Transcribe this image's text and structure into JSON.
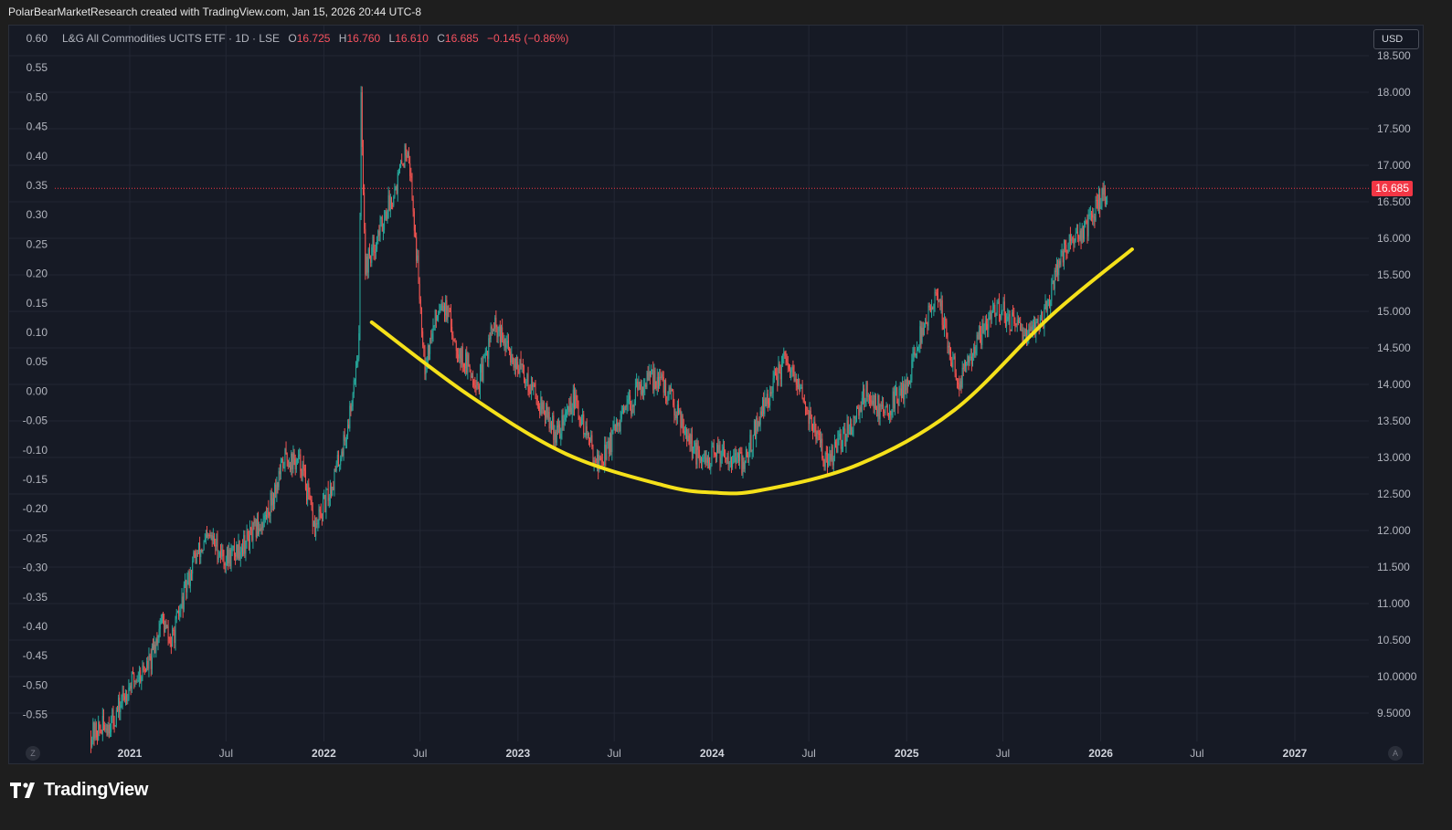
{
  "header": {
    "credit": "PolarBearMarketResearch created with TradingView.com, Jan 15, 2026 20:44 UTC-8"
  },
  "legend": {
    "symbol": "L&G All Commodities UCITS ETF · 1D · LSE",
    "open_label": "O",
    "open": "16.725",
    "high_label": "H",
    "high": "16.760",
    "low_label": "L",
    "low": "16.610",
    "close_label": "C",
    "close": "16.685",
    "change": "−0.145 (−0.86%)"
  },
  "currency_button": "USD",
  "last_price_badge": "16.685",
  "left_axis_labels": [
    "0.60",
    "0.55",
    "0.50",
    "0.45",
    "0.40",
    "0.35",
    "0.30",
    "0.25",
    "0.20",
    "0.15",
    "0.10",
    "0.05",
    "0.00",
    "-0.05",
    "-0.10",
    "-0.15",
    "-0.20",
    "-0.25",
    "-0.30",
    "-0.35",
    "-0.40",
    "-0.45",
    "-0.50",
    "-0.55"
  ],
  "left_axis_values": [
    0.6,
    0.55,
    0.5,
    0.45,
    0.4,
    0.35,
    0.3,
    0.25,
    0.2,
    0.15,
    0.1,
    0.05,
    0.0,
    -0.05,
    -0.1,
    -0.15,
    -0.2,
    -0.25,
    -0.3,
    -0.35,
    -0.4,
    -0.45,
    -0.5,
    -0.55
  ],
  "corner_buttons": {
    "left": "Z",
    "right": "A"
  },
  "footer": {
    "brand": "TradingView"
  },
  "colors": {
    "background": "#161a25",
    "grid": "#232734",
    "up": "#26a69a",
    "down": "#ef5350",
    "curve": "#f5e11a",
    "price_line": "#f23645",
    "axis_text": "#b2b5be"
  },
  "chart_data": {
    "type": "candlestick",
    "title": "L&G All Commodities UCITS ETF · 1D · LSE",
    "currency": "USD",
    "y_axis": {
      "labels": [
        "18.500",
        "18.000",
        "17.500",
        "17.000",
        "16.500",
        "16.000",
        "15.500",
        "15.000",
        "14.500",
        "14.000",
        "13.500",
        "13.000",
        "12.500",
        "12.000",
        "11.500",
        "11.000",
        "10.500",
        "10.0000",
        "9.5000"
      ],
      "values": [
        18.5,
        18.0,
        17.5,
        17.0,
        16.5,
        16.0,
        15.5,
        15.0,
        14.5,
        14.0,
        13.5,
        13.0,
        12.5,
        12.0,
        11.5,
        11.0,
        10.5,
        10.0,
        9.5
      ],
      "range": [
        9.2,
        18.6
      ]
    },
    "x_axis": {
      "labels": [
        "2021",
        "Jul",
        "2022",
        "Jul",
        "2023",
        "Jul",
        "2024",
        "Jul",
        "2025",
        "Jul",
        "2026",
        "Jul",
        "2027"
      ],
      "dates": [
        "2021-01-01",
        "2021-07-01",
        "2022-01-01",
        "2022-07-01",
        "2023-01-01",
        "2023-07-01",
        "2024-01-01",
        "2024-07-01",
        "2025-01-01",
        "2025-07-01",
        "2026-01-01",
        "2026-07-01",
        "2027-01-01"
      ],
      "range": [
        "2020-09-20",
        "2027-08-10"
      ]
    },
    "last_price": 16.685,
    "price_path": [
      [
        "2020-10-20",
        9.2
      ],
      [
        "2020-12-01",
        9.4
      ],
      [
        "2021-01-01",
        9.9
      ],
      [
        "2021-02-10",
        10.2
      ],
      [
        "2021-03-01",
        10.8
      ],
      [
        "2021-03-20",
        10.45
      ],
      [
        "2021-05-01",
        11.6
      ],
      [
        "2021-06-01",
        11.9
      ],
      [
        "2021-07-01",
        11.6
      ],
      [
        "2021-08-15",
        11.9
      ],
      [
        "2021-09-15",
        12.2
      ],
      [
        "2021-10-20",
        13.0
      ],
      [
        "2021-11-20",
        12.9
      ],
      [
        "2021-12-15",
        12.0
      ],
      [
        "2022-01-15",
        12.6
      ],
      [
        "2022-02-15",
        13.4
      ],
      [
        "2022-03-08",
        14.6
      ],
      [
        "2022-03-12",
        17.9
      ],
      [
        "2022-03-20",
        15.6
      ],
      [
        "2022-04-15",
        16.1
      ],
      [
        "2022-05-20",
        16.8
      ],
      [
        "2022-06-08",
        17.3
      ],
      [
        "2022-06-20",
        16.2
      ],
      [
        "2022-07-10",
        14.3
      ],
      [
        "2022-08-10",
        15.2
      ],
      [
        "2022-09-15",
        14.4
      ],
      [
        "2022-10-20",
        14.0
      ],
      [
        "2022-11-15",
        14.8
      ],
      [
        "2022-12-20",
        14.4
      ],
      [
        "2023-02-01",
        13.9
      ],
      [
        "2023-03-15",
        13.3
      ],
      [
        "2023-04-15",
        13.8
      ],
      [
        "2023-06-01",
        12.9
      ],
      [
        "2023-07-15",
        13.5
      ],
      [
        "2023-08-20",
        14.0
      ],
      [
        "2023-09-20",
        14.1
      ],
      [
        "2023-11-01",
        13.6
      ],
      [
        "2023-12-10",
        12.9
      ],
      [
        "2024-01-20",
        13.1
      ],
      [
        "2024-03-01",
        12.9
      ],
      [
        "2024-04-01",
        13.6
      ],
      [
        "2024-05-15",
        14.3
      ],
      [
        "2024-06-15",
        13.9
      ],
      [
        "2024-08-05",
        12.9
      ],
      [
        "2024-09-15",
        13.4
      ],
      [
        "2024-10-15",
        13.9
      ],
      [
        "2024-11-20",
        13.6
      ],
      [
        "2025-01-01",
        14.0
      ],
      [
        "2025-02-01",
        14.8
      ],
      [
        "2025-03-01",
        15.2
      ],
      [
        "2025-04-08",
        14.0
      ],
      [
        "2025-05-15",
        14.6
      ],
      [
        "2025-06-20",
        15.1
      ],
      [
        "2025-08-01",
        14.7
      ],
      [
        "2025-09-15",
        14.9
      ],
      [
        "2025-10-20",
        15.8
      ],
      [
        "2025-12-01",
        16.1
      ],
      [
        "2026-01-15",
        16.685
      ]
    ],
    "overlay_curve": {
      "type": "rounded-bottom arc",
      "color": "#f5e11a",
      "points": [
        [
          "2022-04-01",
          14.85
        ],
        [
          "2022-10-01",
          13.85
        ],
        [
          "2023-04-01",
          13.05
        ],
        [
          "2023-10-01",
          12.62
        ],
        [
          "2024-01-01",
          12.52
        ],
        [
          "2024-04-01",
          12.55
        ],
        [
          "2024-10-01",
          12.9
        ],
        [
          "2025-04-01",
          13.65
        ],
        [
          "2025-10-01",
          14.95
        ],
        [
          "2026-03-01",
          15.85
        ]
      ]
    }
  }
}
